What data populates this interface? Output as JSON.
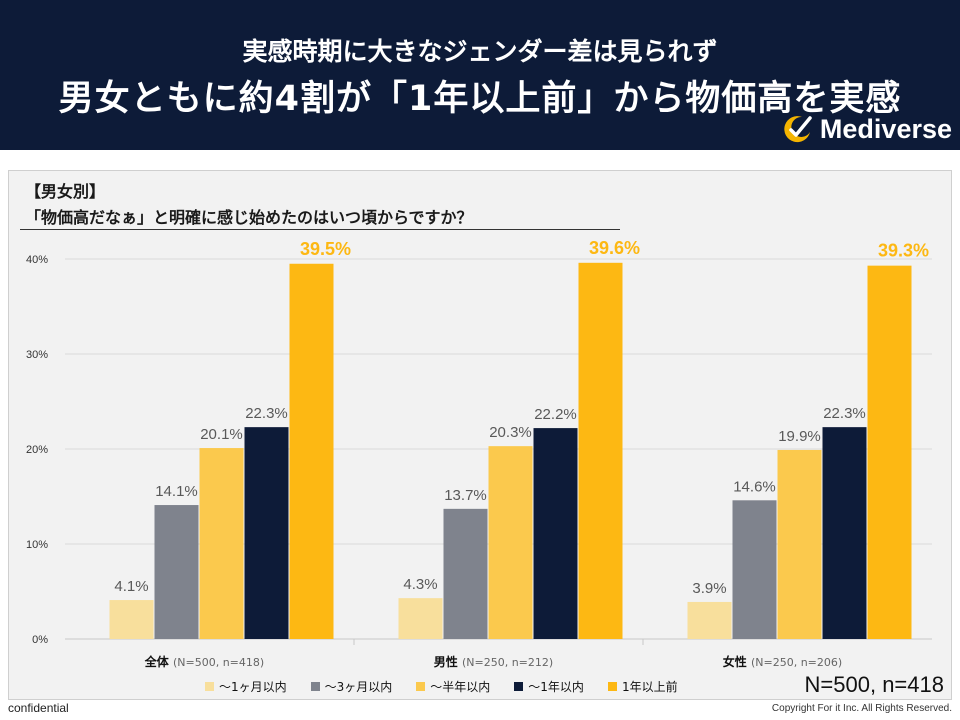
{
  "header": {
    "subtitle": "実感時期に大きなジェンダー差は見られず",
    "headline": "男女ともに約4割が「1年以上前」から物価高を実感",
    "brand": "Mediverse"
  },
  "question": {
    "tag": "【男女別】",
    "text": "「物価高だなぁ」と明確に感じ始めたのはいつ頃からですか？"
  },
  "chart_data": {
    "type": "bar",
    "title": "「物価高だなぁ」と明確に感じ始めたのはいつ頃からですか？",
    "categories": [
      {
        "name": "全体",
        "note": "(N=500, n=418)"
      },
      {
        "name": "男性",
        "note": "(N=250, n=212)"
      },
      {
        "name": "女性",
        "note": "(N=250, n=206)"
      }
    ],
    "series": [
      {
        "name": "〜1ヶ月以内",
        "color": "#f8df9c",
        "values": [
          4.1,
          4.3,
          3.9
        ]
      },
      {
        "name": "〜3ヶ月以内",
        "color": "#7f838d",
        "values": [
          14.1,
          13.7,
          14.6
        ]
      },
      {
        "name": "〜半年以内",
        "color": "#fbc94d",
        "values": [
          20.1,
          20.3,
          19.9
        ]
      },
      {
        "name": "〜1年以内",
        "color": "#0d1b38",
        "values": [
          22.3,
          22.2,
          22.3
        ]
      },
      {
        "name": "1年以上前",
        "color": "#fdb813",
        "values": [
          39.5,
          39.6,
          39.3
        ]
      }
    ],
    "y_ticks": [
      "0%",
      "10%",
      "20%",
      "30%",
      "40%"
    ],
    "ylim": [
      0,
      40
    ],
    "highlight_color": "#fdb813",
    "label_color": "#595959",
    "grid": true,
    "legend": "bottom"
  },
  "sample_note": "N=500, n=418",
  "footer": {
    "left": "confidential",
    "right": "Copyright For it Inc. All Rights Reserved."
  }
}
